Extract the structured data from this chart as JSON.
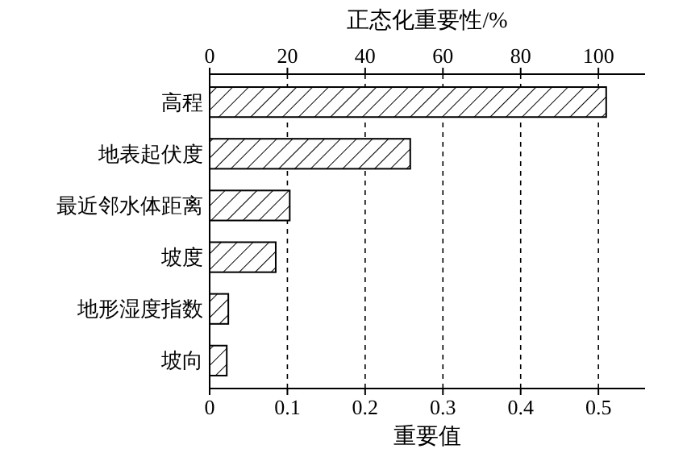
{
  "chart_data": {
    "type": "bar",
    "orientation": "horizontal",
    "categories": [
      "高程",
      "地表起伏度",
      "最近邻水体距离",
      "坡度",
      "地形湿度指数",
      "坡向"
    ],
    "values": [
      0.51,
      0.258,
      0.103,
      0.085,
      0.024,
      0.022
    ],
    "color": "#000000",
    "xlabel": "重要值",
    "x2label": "正态化重要性/%",
    "xlim": [
      0,
      0.56
    ],
    "xticks": [
      0,
      0.1,
      0.2,
      0.3,
      0.4,
      0.5
    ],
    "x2lim": [
      0,
      112
    ],
    "x2ticks": [
      0,
      20,
      40,
      60,
      80,
      100
    ],
    "grid": "x"
  }
}
